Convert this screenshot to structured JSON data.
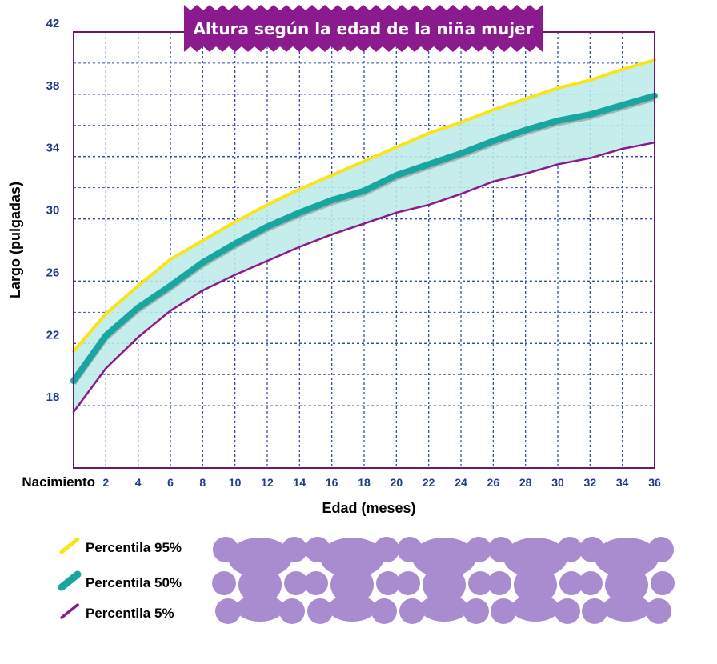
{
  "chart_data": {
    "type": "line",
    "title": "Altura según la edad de la niña mujer",
    "xlabel": "Edad (meses)",
    "ylabel": "Largo (pulgadas)",
    "x": [
      0,
      2,
      4,
      6,
      8,
      10,
      12,
      14,
      16,
      18,
      20,
      22,
      24,
      26,
      28,
      30,
      32,
      34,
      36
    ],
    "x_tick_labels": [
      "Nacimiento",
      "2",
      "4",
      "6",
      "8",
      "10",
      "12",
      "14",
      "16",
      "18",
      "20",
      "22",
      "24",
      "26",
      "28",
      "30",
      "32",
      "34",
      "36"
    ],
    "y_ticks": [
      18,
      22,
      26,
      30,
      34,
      38,
      42
    ],
    "xlim": [
      0,
      36
    ],
    "ylim": [
      14,
      42
    ],
    "grid": true,
    "series": [
      {
        "name": "Percentila 95%",
        "color": "#f7e51a",
        "values": [
          21.5,
          23.9,
          25.7,
          27.4,
          28.6,
          29.8,
          30.9,
          31.9,
          32.8,
          33.7,
          34.6,
          35.5,
          36.2,
          37.0,
          37.7,
          38.4,
          38.9,
          39.6,
          40.2
        ]
      },
      {
        "name": "Percentila 50%",
        "color": "#19a5a0",
        "values": [
          19.6,
          22.5,
          24.3,
          25.7,
          27.2,
          28.4,
          29.5,
          30.4,
          31.2,
          31.8,
          32.8,
          33.5,
          34.2,
          35.0,
          35.7,
          36.3,
          36.7,
          37.3,
          37.9
        ]
      },
      {
        "name": "Percentila 5%",
        "color": "#8a1a8a",
        "values": [
          17.6,
          20.4,
          22.4,
          24.1,
          25.4,
          26.4,
          27.3,
          28.2,
          29.0,
          29.7,
          30.4,
          30.9,
          31.6,
          32.4,
          32.9,
          33.5,
          33.9,
          34.5,
          34.9
        ]
      }
    ]
  }
}
